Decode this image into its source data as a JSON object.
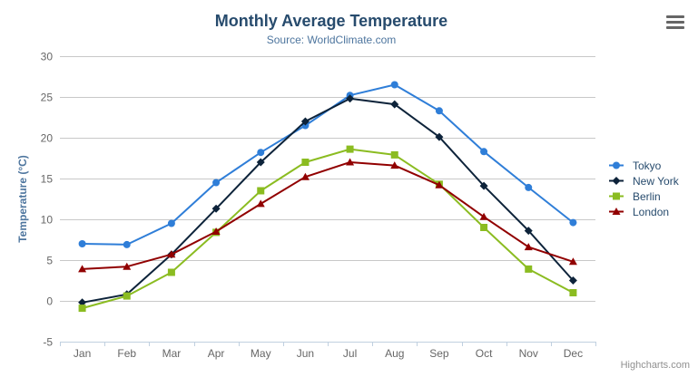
{
  "header": {
    "title": "Monthly Average Temperature",
    "subtitle": "Source: WorldClimate.com"
  },
  "credit": "Highcharts.com",
  "colors": {
    "title": "#274b6d",
    "subtitle": "#4d759e",
    "axis_title": "#4d759e",
    "tick_label": "#666666",
    "gridline": "#c8c8c8",
    "axis_line": "#c0d0e0",
    "legend_text": "#274b6d",
    "credit_text": "#909090"
  },
  "chart_data": {
    "type": "line",
    "title": "Monthly Average Temperature",
    "subtitle": "Source: WorldClimate.com",
    "categories": [
      "Jan",
      "Feb",
      "Mar",
      "Apr",
      "May",
      "Jun",
      "Jul",
      "Aug",
      "Sep",
      "Oct",
      "Nov",
      "Dec"
    ],
    "xlabel": "",
    "ylabel": "Temperature (°C)",
    "ylim": [
      -5,
      30
    ],
    "ytick_step": 5,
    "grid": true,
    "legend_position": "right",
    "series": [
      {
        "name": "Tokyo",
        "color": "#2f7ed8",
        "marker": "circle",
        "values": [
          7.0,
          6.9,
          9.5,
          14.5,
          18.2,
          21.5,
          25.2,
          26.5,
          23.3,
          18.3,
          13.9,
          9.6
        ]
      },
      {
        "name": "New York",
        "color": "#0d233a",
        "marker": "diamond",
        "values": [
          -0.2,
          0.8,
          5.7,
          11.3,
          17.0,
          22.0,
          24.8,
          24.1,
          20.1,
          14.1,
          8.6,
          2.5
        ]
      },
      {
        "name": "Berlin",
        "color": "#8bbc21",
        "marker": "square",
        "values": [
          -0.9,
          0.6,
          3.5,
          8.4,
          13.5,
          17.0,
          18.6,
          17.9,
          14.3,
          9.0,
          3.9,
          1.0
        ]
      },
      {
        "name": "London",
        "color": "#910000",
        "marker": "triangle",
        "values": [
          3.9,
          4.2,
          5.7,
          8.5,
          11.9,
          15.2,
          17.0,
          16.6,
          14.2,
          10.3,
          6.6,
          4.8
        ]
      }
    ]
  }
}
